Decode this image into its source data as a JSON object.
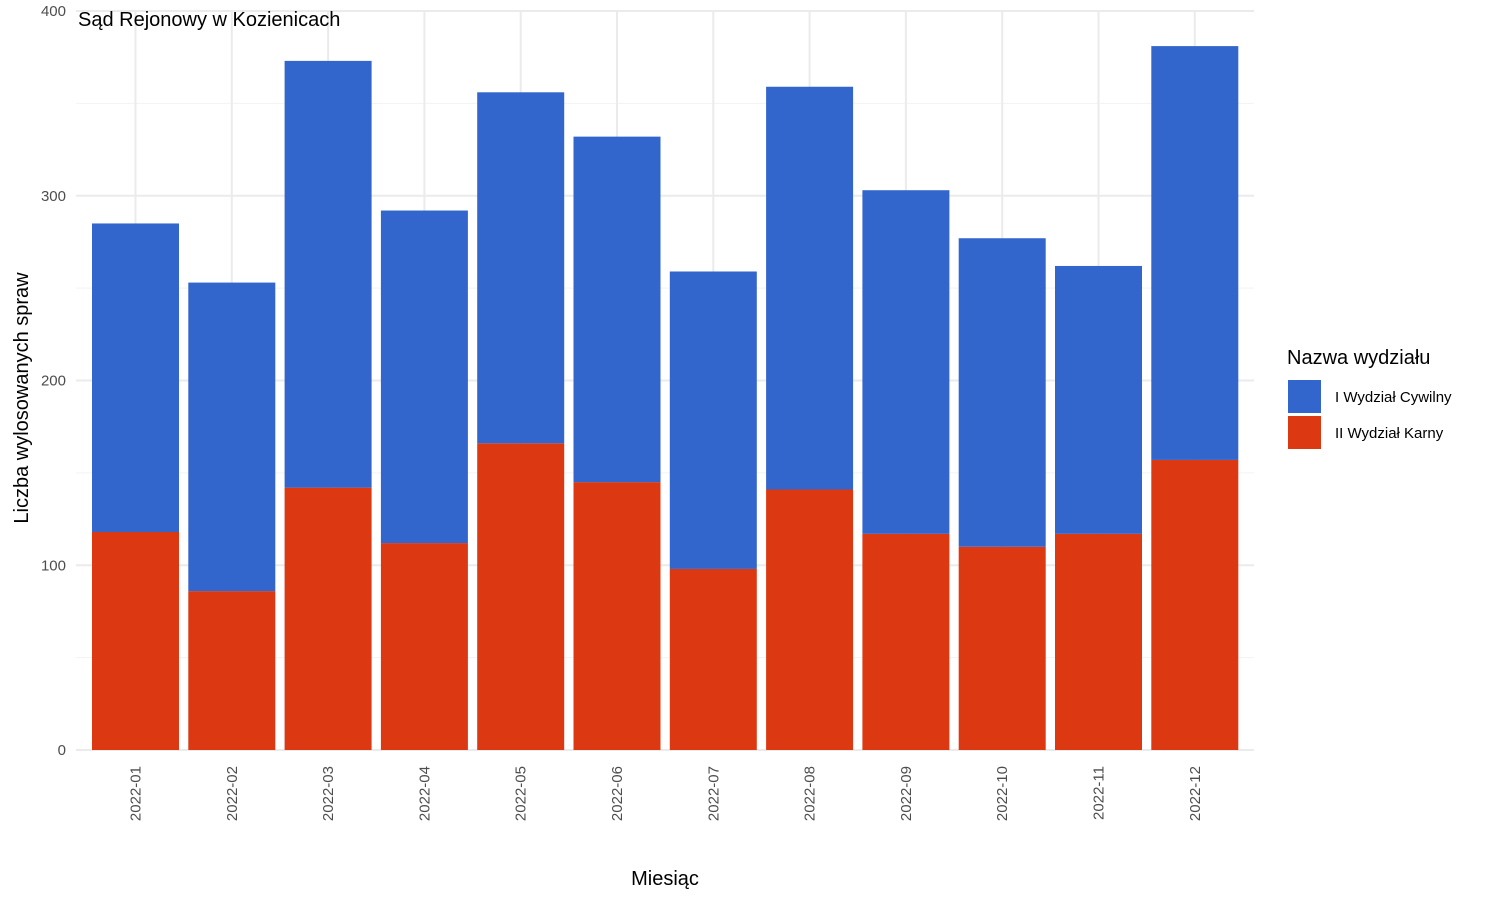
{
  "chart_data": {
    "type": "bar",
    "stacked": true,
    "title": "Sąd Rejonowy w Kozienicach",
    "xlabel": "Miesiąc",
    "ylabel": "Liczba wylosowanych spraw",
    "ylim": [
      0,
      400
    ],
    "yticks": [
      0,
      100,
      200,
      300,
      400
    ],
    "grid": true,
    "legend_position": "right",
    "legend_title": "Nazwa wydziału",
    "categories": [
      "2022-01",
      "2022-02",
      "2022-03",
      "2022-04",
      "2022-05",
      "2022-06",
      "2022-07",
      "2022-08",
      "2022-09",
      "2022-10",
      "2022-11",
      "2022-12"
    ],
    "series": [
      {
        "name": "I Wydział Cywilny",
        "color": "#3366cc",
        "values": [
          167,
          167,
          231,
          180,
          190,
          187,
          161,
          218,
          186,
          167,
          145,
          224
        ]
      },
      {
        "name": "II Wydział Karny",
        "color": "#dc3912",
        "values": [
          118,
          86,
          142,
          112,
          166,
          145,
          98,
          141,
          117,
          110,
          117,
          157
        ]
      }
    ]
  }
}
